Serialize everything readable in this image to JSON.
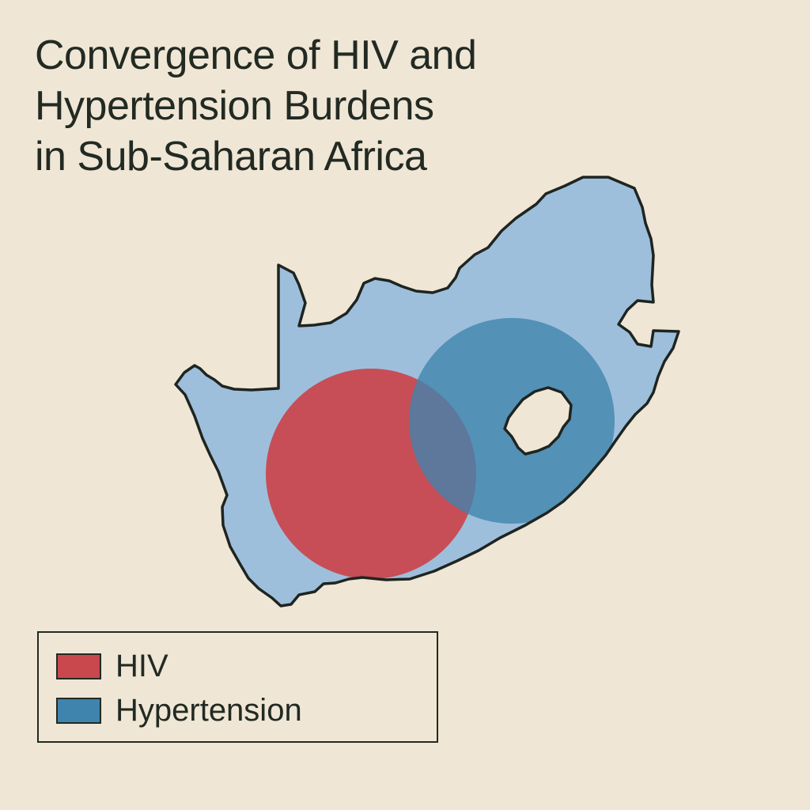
{
  "title_lines": [
    "Convergence of HIV and",
    "Hypertension Burdens",
    "in Sub-Saharan Africa"
  ],
  "map": {
    "region_fill": "#9dbfdc",
    "outline_color": "#1f2420",
    "background": "#efe6d6"
  },
  "legend": {
    "items": [
      {
        "label": "HIV",
        "color": "#c9484e"
      },
      {
        "label": "Hypertension",
        "color": "#3f84ad"
      }
    ]
  }
}
